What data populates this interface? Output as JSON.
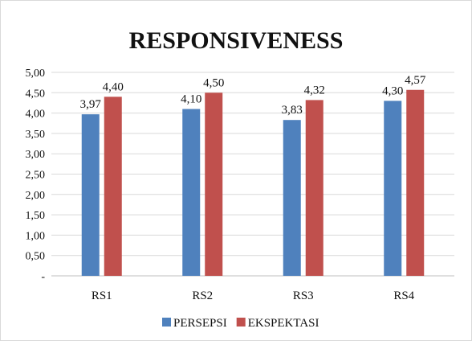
{
  "chart_data": {
    "type": "bar",
    "title": "RESPONSIVENESS",
    "xlabel": "",
    "ylabel": "",
    "categories": [
      "RS1",
      "RS2",
      "RS3",
      "RS4"
    ],
    "series": [
      {
        "name": "PERSEPSI",
        "color": "#4f81bd",
        "values": [
          3.97,
          4.1,
          3.83,
          4.3
        ],
        "labels": [
          "3,97",
          "4,10",
          "3,83",
          "4,30"
        ]
      },
      {
        "name": "EKSPEKTASI",
        "color": "#c0504d",
        "values": [
          4.4,
          4.5,
          4.32,
          4.57
        ],
        "labels": [
          "4,40",
          "4,50",
          "4,32",
          "4,57"
        ]
      }
    ],
    "ylim": [
      0,
      5
    ],
    "yticks": [
      0,
      0.5,
      1,
      1.5,
      2,
      2.5,
      3,
      3.5,
      4,
      4.5,
      5
    ],
    "ytick_labels": [
      "-",
      "0,50",
      "1,00",
      "1,50",
      "2,00",
      "2,50",
      "3,00",
      "3,50",
      "4,00",
      "4,50",
      "5,00"
    ],
    "grid": true,
    "legend_position": "bottom"
  }
}
